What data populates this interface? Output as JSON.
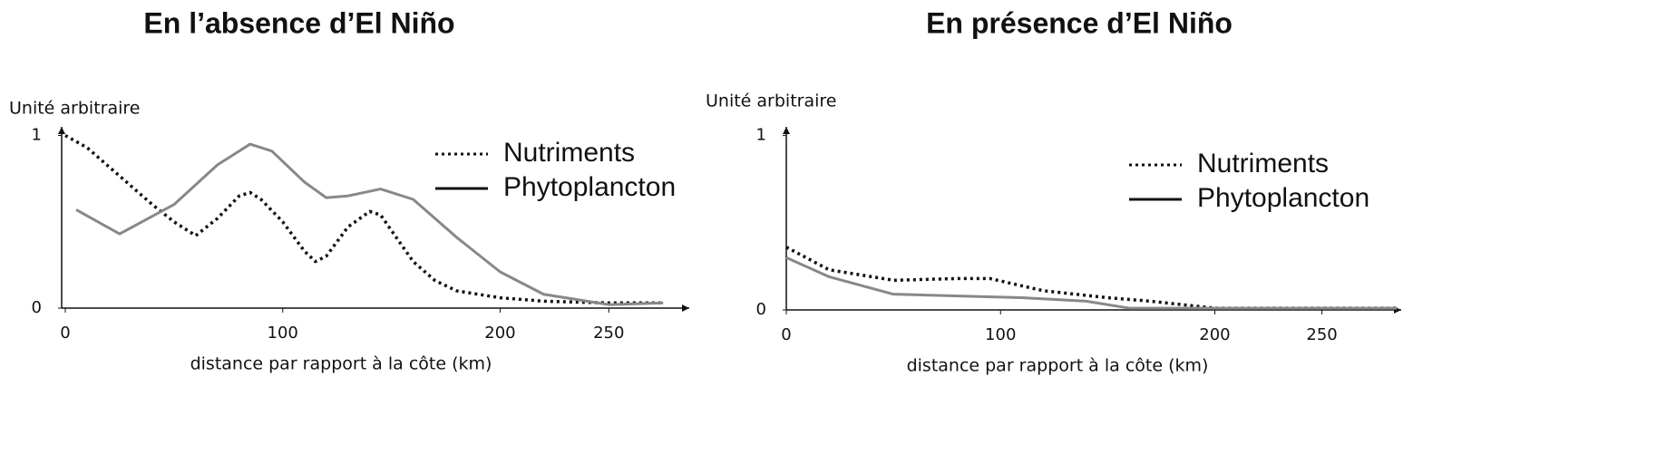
{
  "chart_data": [
    {
      "type": "line",
      "title": "En l’absence d’El Niño",
      "y_label": "Unité arbitraire",
      "x_label": "distance par rapport à la côte (km)",
      "xlim": [
        0,
        287
      ],
      "ylim": [
        0,
        1.05
      ],
      "xticks": [
        0,
        100,
        200,
        250
      ],
      "yticks": [
        0,
        1
      ],
      "series": [
        {
          "name": "Nutriments",
          "color": "#111111",
          "style": "dotted",
          "x": [
            0,
            10,
            20,
            30,
            40,
            50,
            60,
            70,
            80,
            85,
            90,
            100,
            110,
            115,
            120,
            130,
            140,
            145,
            150,
            160,
            170,
            180,
            200,
            220,
            250,
            275
          ],
          "values": [
            1.0,
            0.93,
            0.82,
            0.71,
            0.6,
            0.5,
            0.42,
            0.52,
            0.65,
            0.67,
            0.63,
            0.5,
            0.33,
            0.27,
            0.3,
            0.47,
            0.56,
            0.54,
            0.45,
            0.27,
            0.16,
            0.1,
            0.06,
            0.04,
            0.03,
            0.03
          ]
        },
        {
          "name": "Phytoplancton",
          "color": "#888888",
          "style": "solid",
          "x": [
            5,
            25,
            50,
            70,
            85,
            95,
            110,
            120,
            130,
            145,
            160,
            180,
            200,
            220,
            250,
            275
          ],
          "values": [
            0.57,
            0.43,
            0.6,
            0.83,
            0.95,
            0.91,
            0.73,
            0.64,
            0.65,
            0.69,
            0.63,
            0.41,
            0.21,
            0.08,
            0.02,
            0.03
          ]
        }
      ]
    },
    {
      "type": "line",
      "title": "En présence d’El Niño",
      "y_label": "Unité arbitraire",
      "x_label": "distance par rapport à la côte (km)",
      "xlim": [
        0,
        287
      ],
      "ylim": [
        0,
        1.05
      ],
      "xticks": [
        0,
        100,
        200,
        250
      ],
      "yticks": [
        0,
        1
      ],
      "series": [
        {
          "name": "Nutriments",
          "color": "#111111",
          "style": "dotted",
          "x": [
            0,
            20,
            50,
            80,
            95,
            120,
            150,
            170,
            200,
            285
          ],
          "values": [
            0.36,
            0.23,
            0.17,
            0.18,
            0.18,
            0.11,
            0.07,
            0.05,
            0.01,
            0.01
          ]
        },
        {
          "name": "Phytoplancton",
          "color": "#888888",
          "style": "solid",
          "x": [
            0,
            20,
            50,
            80,
            110,
            140,
            160,
            285
          ],
          "values": [
            0.3,
            0.19,
            0.09,
            0.08,
            0.07,
            0.05,
            0.01,
            0.01
          ]
        }
      ]
    }
  ]
}
